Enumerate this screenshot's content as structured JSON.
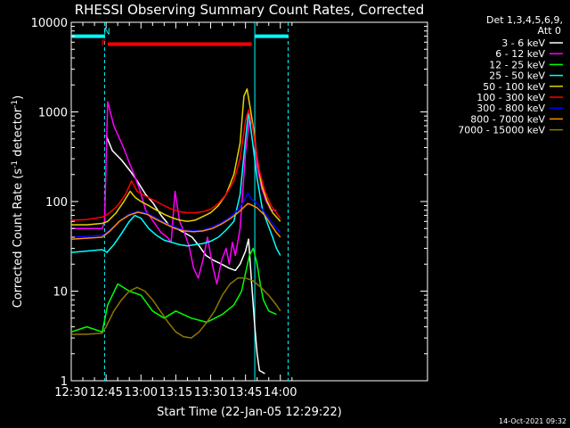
{
  "chart_data": {
    "type": "line",
    "title": "RHESSI Observing Summary Count Rates, Corrected",
    "xlabel": "Start Time (22-Jan-05 12:29:22)",
    "ylabel_main": "Corrected Count Rate (s",
    "ylabel_sup1": "-1",
    "ylabel_mid": " detector",
    "ylabel_sup2": "-1",
    "ylabel_end": ")",
    "yscale": "log",
    "xlim": [
      750,
      1210
    ],
    "ylim": [
      1,
      10000
    ],
    "x_ticks": [
      {
        "v": 750,
        "label": "12:30"
      },
      {
        "v": 765,
        "label": ""
      },
      {
        "v": 780,
        "label": ""
      },
      {
        "v": 795,
        "label": "12:45"
      },
      {
        "v": 810,
        "label": ""
      },
      {
        "v": 825,
        "label": ""
      },
      {
        "v": 840,
        "label": "13:00"
      },
      {
        "v": 855,
        "label": ""
      },
      {
        "v": 870,
        "label": ""
      },
      {
        "v": 885,
        "label": "13:15"
      },
      {
        "v": 900,
        "label": ""
      },
      {
        "v": 915,
        "label": ""
      },
      {
        "v": 930,
        "label": "13:30"
      },
      {
        "v": 945,
        "label": ""
      },
      {
        "v": 960,
        "label": ""
      },
      {
        "v": 975,
        "label": "13:45"
      },
      {
        "v": 990,
        "label": ""
      },
      {
        "v": 1005,
        "label": ""
      },
      {
        "v": 1020,
        "label": "14:00"
      },
      {
        "v": 1035,
        "label": ""
      }
    ],
    "y_ticks": [
      {
        "v": 1,
        "label": "1"
      },
      {
        "v": 10,
        "label": "10"
      },
      {
        "v": 100,
        "label": "100"
      },
      {
        "v": 1000,
        "label": "1000"
      },
      {
        "v": 10000,
        "label": "10000"
      }
    ],
    "legend_header": [
      "Det 1,3,4,5,6,9,",
      "Att 0"
    ],
    "series": [
      {
        "name": "3 - 6 keV",
        "color": "#ffffff",
        "points": [
          [
            795,
            550
          ],
          [
            803,
            370
          ],
          [
            815,
            290
          ],
          [
            826,
            220
          ],
          [
            836,
            165
          ],
          [
            846,
            120
          ],
          [
            856,
            95
          ],
          [
            866,
            70
          ],
          [
            876,
            55
          ],
          [
            886,
            50
          ],
          [
            896,
            45
          ],
          [
            906,
            40
          ],
          [
            915,
            32
          ],
          [
            924,
            25
          ],
          [
            934,
            22
          ],
          [
            944,
            20
          ],
          [
            954,
            18
          ],
          [
            962,
            17
          ],
          [
            968,
            20
          ],
          [
            975,
            28
          ],
          [
            979,
            38
          ],
          [
            983,
            12
          ],
          [
            987,
            4
          ],
          [
            990,
            2
          ],
          [
            993,
            1.3
          ],
          [
            1000,
            1.2
          ]
        ]
      },
      {
        "name": "6 - 12 keV",
        "color": "#ff00ff",
        "points": [
          [
            750,
            50
          ],
          [
            790,
            50
          ],
          [
            793,
            60
          ],
          [
            797,
            1300
          ],
          [
            805,
            700
          ],
          [
            815,
            450
          ],
          [
            823,
            300
          ],
          [
            831,
            200
          ],
          [
            838,
            140
          ],
          [
            846,
            80
          ],
          [
            856,
            60
          ],
          [
            866,
            45
          ],
          [
            874,
            40
          ],
          [
            879,
            35
          ],
          [
            884,
            130
          ],
          [
            890,
            60
          ],
          [
            896,
            45
          ],
          [
            902,
            32
          ],
          [
            908,
            18
          ],
          [
            914,
            14
          ],
          [
            920,
            22
          ],
          [
            926,
            40
          ],
          [
            932,
            20
          ],
          [
            938,
            12
          ],
          [
            944,
            22
          ],
          [
            950,
            30
          ],
          [
            954,
            20
          ],
          [
            958,
            35
          ],
          [
            962,
            25
          ],
          [
            968,
            50
          ],
          [
            975,
            350
          ],
          [
            980,
            800
          ],
          [
            985,
            700
          ],
          [
            990,
            250
          ],
          [
            996,
            140
          ],
          [
            1002,
            100
          ],
          [
            1008,
            80
          ],
          [
            1015,
            80
          ]
        ]
      },
      {
        "name": "12 - 25 keV",
        "color": "#00ff00",
        "points": [
          [
            750,
            3.5
          ],
          [
            770,
            4
          ],
          [
            790,
            3.5
          ],
          [
            797,
            7
          ],
          [
            810,
            12
          ],
          [
            825,
            10
          ],
          [
            840,
            9
          ],
          [
            855,
            6
          ],
          [
            870,
            5
          ],
          [
            885,
            6
          ],
          [
            905,
            5
          ],
          [
            925,
            4.5
          ],
          [
            945,
            5.5
          ],
          [
            960,
            7
          ],
          [
            970,
            10
          ],
          [
            980,
            25
          ],
          [
            985,
            30
          ],
          [
            990,
            20
          ],
          [
            994,
            12
          ],
          [
            998,
            8
          ],
          [
            1005,
            6
          ],
          [
            1015,
            5.5
          ]
        ]
      },
      {
        "name": "25 - 50 keV",
        "color": "#00ffff",
        "points": [
          [
            750,
            27
          ],
          [
            790,
            29
          ],
          [
            796,
            27
          ],
          [
            805,
            33
          ],
          [
            815,
            44
          ],
          [
            825,
            60
          ],
          [
            832,
            70
          ],
          [
            840,
            65
          ],
          [
            850,
            50
          ],
          [
            860,
            42
          ],
          [
            870,
            37
          ],
          [
            880,
            35
          ],
          [
            890,
            33
          ],
          [
            900,
            32
          ],
          [
            910,
            33
          ],
          [
            920,
            34
          ],
          [
            930,
            36
          ],
          [
            940,
            40
          ],
          [
            950,
            48
          ],
          [
            960,
            60
          ],
          [
            968,
            120
          ],
          [
            975,
            500
          ],
          [
            979,
            1000
          ],
          [
            983,
            550
          ],
          [
            990,
            180
          ],
          [
            997,
            80
          ],
          [
            1004,
            55
          ],
          [
            1010,
            40
          ],
          [
            1015,
            30
          ],
          [
            1020,
            25
          ]
        ]
      },
      {
        "name": "50 - 100 keV",
        "color": "#e6d200",
        "points": [
          [
            750,
            55
          ],
          [
            770,
            55
          ],
          [
            790,
            57
          ],
          [
            797,
            60
          ],
          [
            808,
            75
          ],
          [
            818,
            100
          ],
          [
            826,
            130
          ],
          [
            833,
            110
          ],
          [
            840,
            100
          ],
          [
            850,
            90
          ],
          [
            860,
            80
          ],
          [
            870,
            72
          ],
          [
            880,
            66
          ],
          [
            890,
            62
          ],
          [
            900,
            60
          ],
          [
            910,
            62
          ],
          [
            920,
            68
          ],
          [
            930,
            75
          ],
          [
            940,
            90
          ],
          [
            950,
            120
          ],
          [
            960,
            200
          ],
          [
            968,
            450
          ],
          [
            973,
            1500
          ],
          [
            977,
            1800
          ],
          [
            982,
            1000
          ],
          [
            986,
            600
          ],
          [
            990,
            300
          ],
          [
            996,
            150
          ],
          [
            1003,
            100
          ],
          [
            1010,
            75
          ],
          [
            1020,
            60
          ]
        ]
      },
      {
        "name": "100 - 300 keV",
        "color": "#ff0000",
        "points": [
          [
            750,
            62
          ],
          [
            770,
            63
          ],
          [
            790,
            67
          ],
          [
            797,
            72
          ],
          [
            810,
            90
          ],
          [
            820,
            120
          ],
          [
            828,
            170
          ],
          [
            835,
            130
          ],
          [
            842,
            120
          ],
          [
            850,
            110
          ],
          [
            860,
            100
          ],
          [
            870,
            90
          ],
          [
            880,
            82
          ],
          [
            890,
            77
          ],
          [
            900,
            75
          ],
          [
            910,
            75
          ],
          [
            920,
            77
          ],
          [
            930,
            82
          ],
          [
            940,
            95
          ],
          [
            950,
            120
          ],
          [
            960,
            170
          ],
          [
            968,
            300
          ],
          [
            975,
            800
          ],
          [
            979,
            1050
          ],
          [
            984,
            700
          ],
          [
            988,
            400
          ],
          [
            993,
            220
          ],
          [
            1000,
            130
          ],
          [
            1008,
            90
          ],
          [
            1020,
            65
          ]
        ]
      },
      {
        "name": "300 - 800 keV",
        "color": "#0000ff",
        "points": [
          [
            750,
            40
          ],
          [
            790,
            42
          ],
          [
            800,
            48
          ],
          [
            812,
            60
          ],
          [
            824,
            72
          ],
          [
            836,
            78
          ],
          [
            848,
            74
          ],
          [
            860,
            65
          ],
          [
            872,
            57
          ],
          [
            884,
            52
          ],
          [
            896,
            48
          ],
          [
            908,
            47
          ],
          [
            920,
            48
          ],
          [
            932,
            52
          ],
          [
            944,
            58
          ],
          [
            956,
            68
          ],
          [
            966,
            82
          ],
          [
            974,
            105
          ],
          [
            978,
            125
          ],
          [
            982,
            108
          ],
          [
            990,
            95
          ],
          [
            1000,
            75
          ],
          [
            1008,
            60
          ],
          [
            1015,
            50
          ],
          [
            1020,
            45
          ]
        ]
      },
      {
        "name": "800 - 7000 keV",
        "color": "#ff8c00",
        "points": [
          [
            750,
            38
          ],
          [
            790,
            40
          ],
          [
            800,
            47
          ],
          [
            812,
            60
          ],
          [
            824,
            70
          ],
          [
            836,
            76
          ],
          [
            848,
            72
          ],
          [
            860,
            63
          ],
          [
            872,
            56
          ],
          [
            884,
            50
          ],
          [
            896,
            47
          ],
          [
            908,
            46
          ],
          [
            920,
            47
          ],
          [
            932,
            50
          ],
          [
            944,
            56
          ],
          [
            956,
            65
          ],
          [
            966,
            76
          ],
          [
            974,
            88
          ],
          [
            978,
            95
          ],
          [
            982,
            92
          ],
          [
            990,
            85
          ],
          [
            1000,
            70
          ],
          [
            1008,
            55
          ],
          [
            1015,
            45
          ],
          [
            1020,
            40
          ]
        ]
      },
      {
        "name": "7000 - 15000 keV",
        "color": "#8c7800",
        "points": [
          [
            750,
            3.3
          ],
          [
            770,
            3.3
          ],
          [
            790,
            3.4
          ],
          [
            795,
            4
          ],
          [
            805,
            6
          ],
          [
            815,
            8
          ],
          [
            825,
            10
          ],
          [
            835,
            11
          ],
          [
            845,
            10
          ],
          [
            855,
            8
          ],
          [
            865,
            6
          ],
          [
            875,
            4.5
          ],
          [
            885,
            3.5
          ],
          [
            895,
            3.1
          ],
          [
            905,
            3.0
          ],
          [
            915,
            3.5
          ],
          [
            925,
            4.5
          ],
          [
            935,
            6
          ],
          [
            945,
            9
          ],
          [
            955,
            12
          ],
          [
            965,
            14
          ],
          [
            975,
            14
          ],
          [
            985,
            13
          ],
          [
            995,
            11
          ],
          [
            1005,
            9
          ],
          [
            1015,
            7
          ],
          [
            1020,
            6
          ]
        ]
      }
    ],
    "vlines": [
      {
        "v": 793,
        "color": "#00ffff",
        "dashed": true
      },
      {
        "v": 987,
        "color": "#00ffff",
        "dashed": false
      },
      {
        "v": 1030,
        "color": "#00ffff",
        "dashed": true
      }
    ],
    "night_bars": [
      {
        "x0": 750,
        "x1": 793,
        "y": 7000,
        "color": "#00ffff"
      },
      {
        "x0": 987,
        "x1": 1030,
        "y": 7000,
        "color": "#00ffff"
      }
    ],
    "flare_bar": {
      "x0": 797,
      "x1": 983,
      "y": 5700,
      "color": "#ff0000"
    },
    "flags": [
      {
        "text": "F",
        "v": 792,
        "y": 6000,
        "color": "#ff0000"
      },
      {
        "text": "N",
        "v": 796,
        "y": 8000,
        "color": "#00ffff"
      }
    ],
    "footer_date": "14-Oct-2021 09:32"
  }
}
